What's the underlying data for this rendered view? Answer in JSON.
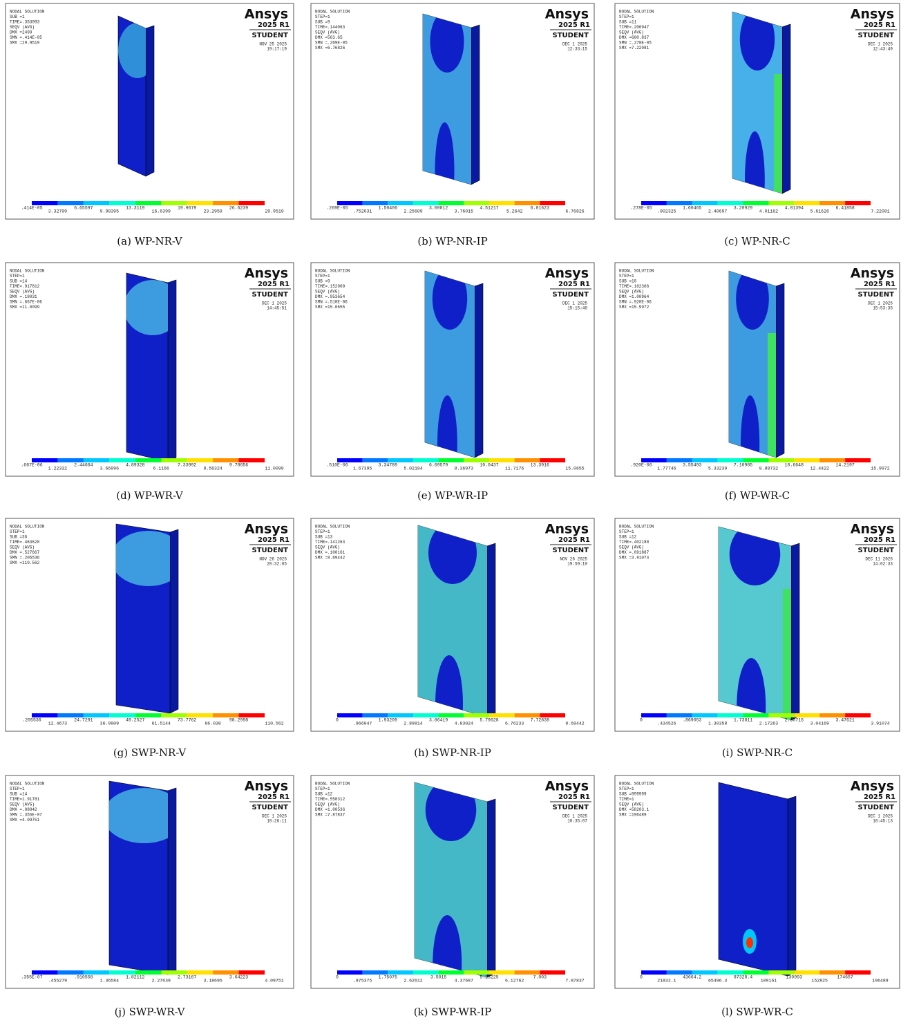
{
  "panels": [
    {
      "header": [
        "NODAL SOLUTION",
        "SUB =1",
        "TIME=.353093",
        "SEQV     (AVG)",
        "DMX =2499",
        "SMN =.414E-05",
        "SMX =29.9519"
      ],
      "logo": "Ansys",
      "release": "2025 R1",
      "edition": "STUDENT",
      "date": "NOV 25 2025",
      "time": "19:17:19",
      "legend": [
        ".414E-05",
        "3.32799",
        "6.65597",
        "9.98395",
        "13.3119",
        "16.6399",
        "19.9679",
        "23.2959",
        "26.6239",
        "29.9519"
      ],
      "caption": "(a) WP-NR-V"
    },
    {
      "header": [
        "NODAL SOLUTION",
        "STEP=1",
        "SUB =9",
        "TIME=.144063",
        "SEQV     (AVG)",
        "DMX =563.65",
        "SMN =.269E-05",
        "SMX =6.76826"
      ],
      "logo": "Ansys",
      "release": "2025 R1",
      "edition": "STUDENT",
      "date": "DEC  1 2025",
      "time": "12:33:15",
      "legend": [
        ".269E-05",
        ".752031",
        "1.50406",
        "2.25609",
        "3.00812",
        "3.76015",
        "4.51217",
        "5.2642",
        "6.01623",
        "6.76826"
      ],
      "caption": "(b) WP-NR-IP"
    },
    {
      "header": [
        "NODAL SOLUTION",
        "STEP=1",
        "SUB =11",
        "TIME=.206947",
        "SEQV     (AVG)",
        "DMX =600.837",
        "SMN =.278E-05",
        "SMX =7.22081"
      ],
      "logo": "Ansys",
      "release": "2025 R1",
      "edition": "STUDENT",
      "date": "DEC  1 2025",
      "time": "12:43:49",
      "legend": [
        ".278E-05",
        ".802325",
        "1.60465",
        "2.40697",
        "3.20929",
        "4.01162",
        "4.81394",
        "5.61626",
        "6.41858",
        "7.22081"
      ],
      "caption": "(c) WP-NR-C"
    },
    {
      "header": [
        "NODAL SOLUTION",
        "STEP=1",
        "SUB =14",
        "TIME=.917812",
        "SEQV     (AVG)",
        "DMX =.18031",
        "SMN =.667E-06",
        "SMX =11.0099"
      ],
      "logo": "Ansys",
      "release": "2025 R1",
      "edition": "STUDENT",
      "date": "DEC  1 2025",
      "time": "14:45:51",
      "legend": [
        ".667E-06",
        "1.22332",
        "2.44664",
        "3.66996",
        "4.89328",
        "6.1166",
        "7.33992",
        "8.56324",
        "9.78656",
        "11.0099"
      ],
      "caption": "(d) WP-WR-V"
    },
    {
      "header": [
        "NODAL SOLUTION",
        "STEP=1",
        "SUB =9",
        "TIME=.152909",
        "SEQV     (AVG)",
        "DMX =.953654",
        "SMN =.510E-06",
        "SMX =15.0655"
      ],
      "logo": "Ansys",
      "release": "2025 R1",
      "edition": "STUDENT",
      "date": "DEC  1 2025",
      "time": "15:15:40",
      "legend": [
        ".510E-06",
        "1.67395",
        "3.34789",
        "5.02184",
        "6.69579",
        "8.36973",
        "10.0437",
        "11.7176",
        "13.3916",
        "15.0655"
      ],
      "caption": "(e) WP-WR-IP"
    },
    {
      "header": [
        "NODAL SOLUTION",
        "STEP=1",
        "SUB =10",
        "TIME=.162366",
        "SEQV     (AVG)",
        "DMX =1.00964",
        "SMN =.920E-06",
        "SMX =15.9972"
      ],
      "logo": "Ansys",
      "release": "2025 R1",
      "edition": "STUDENT",
      "date": "DEC  1 2025",
      "time": "15:53:35",
      "legend": [
        ".920E-06",
        "1.77746",
        "3.55493",
        "5.33239",
        "7.10985",
        "8.88732",
        "10.6648",
        "12.4422",
        "14.2197",
        "15.9972"
      ],
      "caption": "(f) WP-WR-C"
    },
    {
      "header": [
        "NODAL SOLUTION",
        "STEP=1",
        "SUB =36",
        "TIME=.463628",
        "SEQV     (AVG)",
        "DMX =.527667",
        "SMN =.205536",
        "SMX =110.562"
      ],
      "logo": "Ansys",
      "release": "2025 R1",
      "edition": "STUDENT",
      "date": "NOV 26 2025",
      "time": "20:32:05",
      "legend": [
        ".205536",
        "12.4673",
        "24.7291",
        "36.9909",
        "49.2527",
        "61.5144",
        "73.7762",
        "86.038",
        "98.2998",
        "110.562"
      ],
      "caption": "(g) SWP-NR-V"
    },
    {
      "header": [
        "NODAL SOLUTION",
        "STEP=1",
        "SUB =13",
        "TIME=.141263",
        "SEQV     (AVG)",
        "DMX =.100161",
        "SMX =8.69442"
      ],
      "logo": "Ansys",
      "release": "2025 R1",
      "edition": "STUDENT",
      "date": "NOV 26 2025",
      "time": "19:59:10",
      "legend": [
        "0",
        ".966047",
        "1.93209",
        "2.89814",
        "3.86419",
        "4.83024",
        "5.79628",
        "6.76233",
        "7.72838",
        "8.69442"
      ],
      "caption": "(h) SWP-NR-IP"
    },
    {
      "header": [
        "NODAL SOLUTION",
        "STEP=1",
        "SUB =12",
        "TIME=.402188",
        "SEQV     (AVG)",
        "DMX =.091887",
        "SMX =3.91074"
      ],
      "logo": "Ansys",
      "release": "2025 R1",
      "edition": "STUDENT",
      "date": "DEC 11 2025",
      "time": "14:02:33",
      "legend": [
        "0",
        ".434526",
        ".869053",
        "1.30358",
        "1.73811",
        "2.17263",
        "2.60716",
        "3.04169",
        "3.47621",
        "3.91074"
      ],
      "caption": "(i) SWP-NR-C"
    },
    {
      "header": [
        "NODAL SOLUTION",
        "STEP=1",
        "SUB =14",
        "TIME=1.91781",
        "SEQV     (AVG)",
        "DMX =.08842",
        "SMN =.355E-07",
        "SMX =4.09751"
      ],
      "logo": "Ansys",
      "release": "2025 R1",
      "edition": "STUDENT",
      "date": "DEC  1 2025",
      "time": "10:26:11",
      "legend": [
        ".355E-07",
        ".455279",
        ".910558",
        "1.36584",
        "1.82112",
        "2.27639",
        "2.73167",
        "3.18695",
        "3.64223",
        "4.09751"
      ],
      "caption": "(j) SWP-WR-V"
    },
    {
      "header": [
        "NODAL SOLUTION",
        "STEP=1",
        "SUB =12",
        "TIME=.558312",
        "SEQV     (AVG)",
        "DMX =1.00536",
        "SMX =7.87837"
      ],
      "logo": "Ansys",
      "release": "2025 R1",
      "edition": "STUDENT",
      "date": "DEC  1 2025",
      "time": "10:35:07",
      "legend": [
        "0",
        ".875375",
        "1.75075",
        "2.62612",
        "3.5015",
        "4.37687",
        "5.25225",
        "6.12762",
        "7.003",
        "7.87837"
      ],
      "caption": "(k) SWP-WR-IP"
    },
    {
      "header": [
        "NODAL SOLUTION",
        "STEP=1",
        "SUB =999999",
        "TIME=1",
        "SEQV     (AVG)",
        "DMX =58203.1",
        "SMX =196489"
      ],
      "logo": "Ansys",
      "release": "2025 R1",
      "edition": "STUDENT",
      "date": "DEC  1 2025",
      "time": "10:45:13",
      "legend": [
        "0",
        "21832.1",
        "43664.2",
        "65496.3",
        "87328.4",
        "109161",
        "130993",
        "152825",
        "174657",
        "196489"
      ],
      "caption": "(l) SWP-WR-C"
    }
  ]
}
